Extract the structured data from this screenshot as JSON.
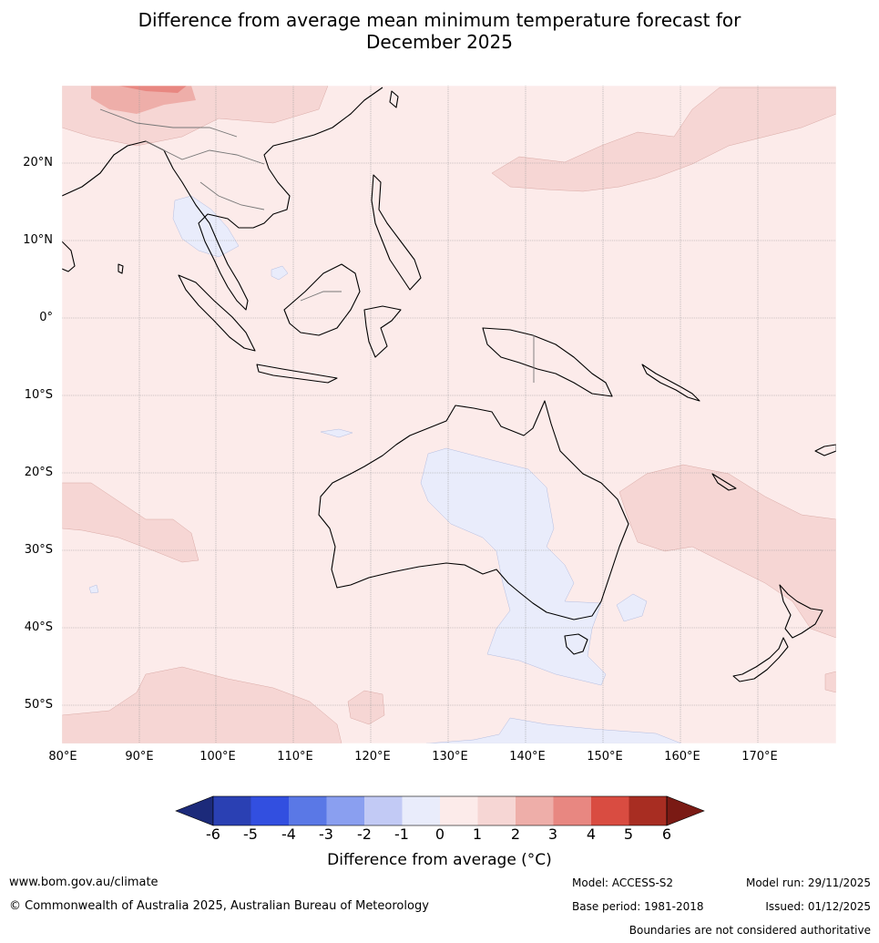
{
  "title": {
    "line1": "Difference from average mean minimum temperature forecast for",
    "line2": "December 2025"
  },
  "map": {
    "latitude_labels": [
      "20°N",
      "10°N",
      "0°",
      "10°S",
      "20°S",
      "30°S",
      "40°S",
      "50°S"
    ],
    "longitude_labels": [
      "80°E",
      "90°E",
      "100°E",
      "110°E",
      "120°E",
      "130°E",
      "140°E",
      "150°E",
      "160°E",
      "170°E"
    ],
    "extent": {
      "lon_min": 80,
      "lon_max": 180,
      "lat_min": -55,
      "lat_max": 30
    }
  },
  "colorbar": {
    "ticks": [
      "-6",
      "-5",
      "-4",
      "-3",
      "-2",
      "-1",
      "0",
      "1",
      "2",
      "3",
      "4",
      "5",
      "6"
    ],
    "colors": [
      "#1c2a7a",
      "#2a40b3",
      "#324fe0",
      "#5a78e6",
      "#8a9ff0",
      "#c2caf5",
      "#e9ecfb",
      "#fcebea",
      "#f6d6d4",
      "#eeaea9",
      "#e88781",
      "#d94c41",
      "#a82d22",
      "#7a1a14"
    ],
    "label": "Difference from average (°C)"
  },
  "footer": {
    "website": "www.bom.gov.au/climate",
    "copyright": "© Commonwealth of Australia 2025, Australian Bureau of Meteorology",
    "model": "Model: ACCESS-S2",
    "base_period": "Base period: 1981-2018",
    "model_run": "Model run: 29/11/2025",
    "issued": "Issued: 01/12/2025",
    "disclaimer": "Boundaries are not considered authoritative"
  }
}
